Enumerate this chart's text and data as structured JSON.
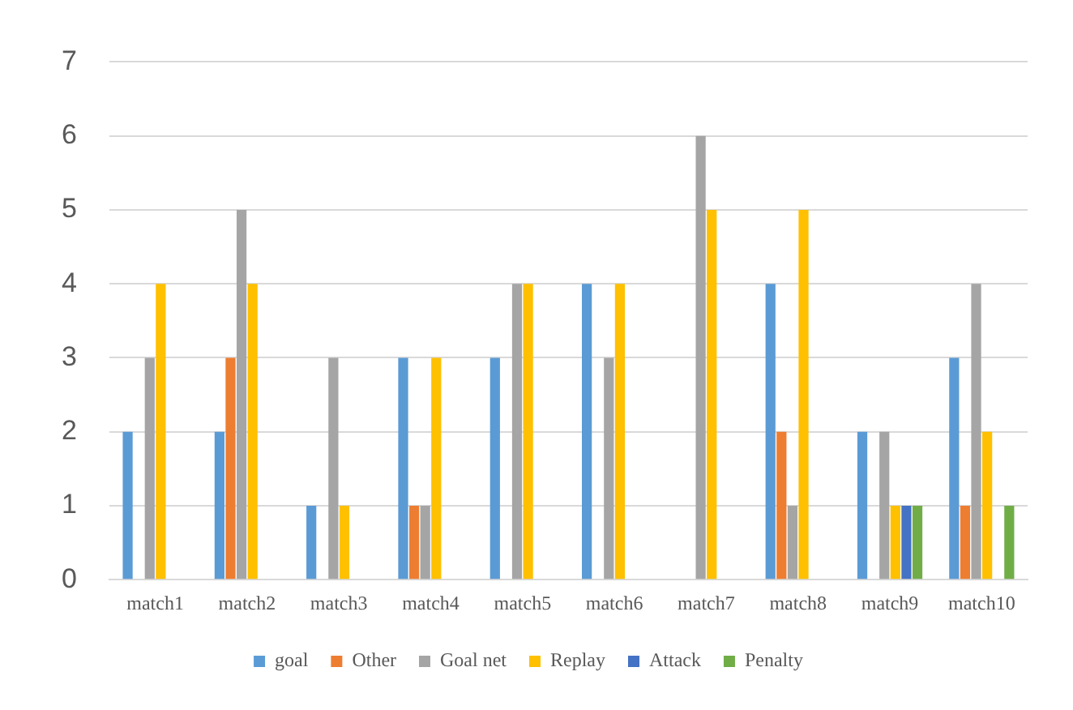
{
  "chart_data": {
    "type": "bar",
    "categories": [
      "match1",
      "match2",
      "match3",
      "match4",
      "match5",
      "match6",
      "match7",
      "match8",
      "match9",
      "match10"
    ],
    "series": [
      {
        "name": "goal",
        "color": "#5b9bd5",
        "values": [
          2,
          2,
          1,
          3,
          3,
          4,
          0,
          4,
          2,
          3
        ]
      },
      {
        "name": "Other",
        "color": "#ed7d31",
        "values": [
          0,
          3,
          0,
          1,
          0,
          0,
          0,
          2,
          0,
          1
        ]
      },
      {
        "name": "Goal net",
        "color": "#a5a5a5",
        "values": [
          3,
          5,
          3,
          1,
          4,
          3,
          6,
          1,
          2,
          4
        ]
      },
      {
        "name": "Replay",
        "color": "#ffc000",
        "values": [
          4,
          4,
          1,
          3,
          4,
          4,
          5,
          5,
          1,
          2
        ]
      },
      {
        "name": "Attack",
        "color": "#4472c4",
        "values": [
          0,
          0,
          0,
          0,
          0,
          0,
          0,
          0,
          1,
          0
        ]
      },
      {
        "name": "Penalty",
        "color": "#70ad47",
        "values": [
          0,
          0,
          0,
          0,
          0,
          0,
          0,
          0,
          1,
          1
        ]
      }
    ],
    "ylim": [
      0,
      7
    ],
    "yticks": [
      0,
      1,
      2,
      3,
      4,
      5,
      6,
      7
    ],
    "grid": "y",
    "legend": "bottom"
  }
}
